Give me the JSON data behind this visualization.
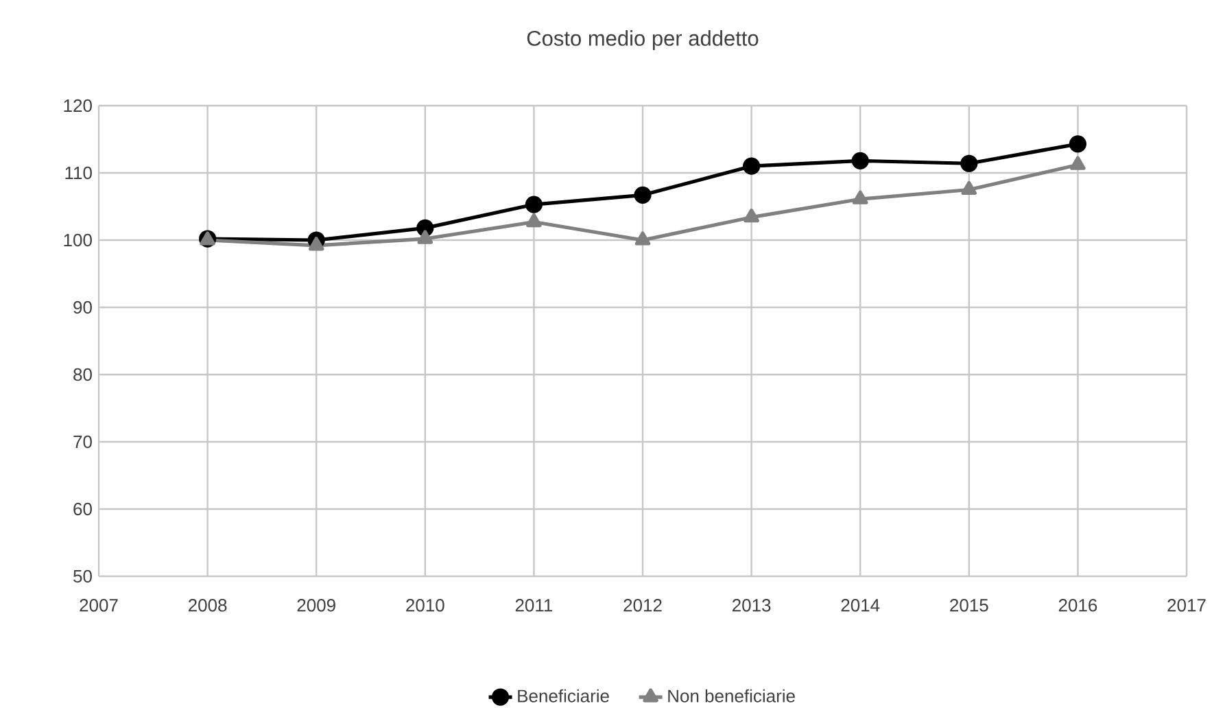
{
  "chart_data": {
    "type": "line",
    "title": "Costo medio per addetto",
    "x": [
      2008,
      2009,
      2010,
      2011,
      2012,
      2013,
      2014,
      2015,
      2016
    ],
    "series": [
      {
        "name": "Beneficiarie",
        "color": "#000000",
        "marker": "circle",
        "values": [
          100.2,
          100,
          101.8,
          105.3,
          106.7,
          111,
          111.8,
          111.4,
          114.3
        ]
      },
      {
        "name": "Non beneficiarie",
        "color": "#808080",
        "marker": "triangle",
        "values": [
          100,
          99.2,
          100.2,
          102.7,
          100,
          103.4,
          106.1,
          107.5,
          111.2
        ]
      }
    ],
    "xlim": [
      2007,
      2017
    ],
    "xticks": [
      2007,
      2008,
      2009,
      2010,
      2011,
      2012,
      2013,
      2014,
      2015,
      2016,
      2017
    ],
    "ylim": [
      50,
      120
    ],
    "yticks": [
      50,
      60,
      70,
      80,
      90,
      100,
      110,
      120
    ],
    "grid": true,
    "legend": "bottom",
    "line_style": "solid"
  }
}
